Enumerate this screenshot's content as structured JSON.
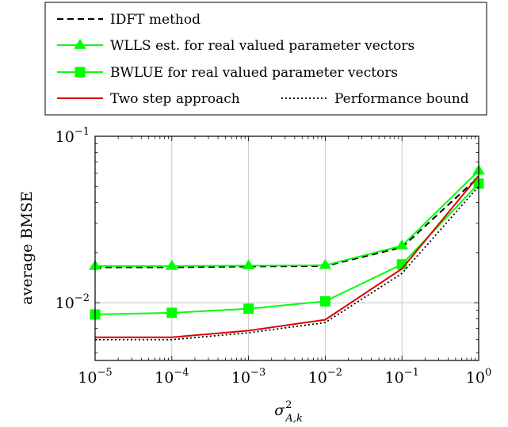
{
  "chart_data": {
    "type": "line",
    "xlabel": "σ",
    "xlabel_sup": "2",
    "xlabel_sub": "A,k",
    "ylabel": "average BMSE",
    "xscale": "log",
    "yscale": "log",
    "xlim": [
      1e-05,
      1
    ],
    "ylim": [
      0.0045,
      0.1
    ],
    "grid": true,
    "legend_position": "top",
    "x_ticks": [
      {
        "base": "10",
        "exp": "−5",
        "value": 1e-05
      },
      {
        "base": "10",
        "exp": "−4",
        "value": 0.0001
      },
      {
        "base": "10",
        "exp": "−3",
        "value": 0.001
      },
      {
        "base": "10",
        "exp": "−2",
        "value": 0.01
      },
      {
        "base": "10",
        "exp": "−1",
        "value": 0.1
      },
      {
        "base": "10",
        "exp": "0",
        "value": 1
      }
    ],
    "y_ticks": [
      {
        "base": "10",
        "exp": "−2",
        "value": 0.01
      },
      {
        "base": "10",
        "exp": "−1",
        "value": 0.1
      }
    ],
    "x": [
      1e-05,
      0.0001,
      0.001,
      0.01,
      0.1,
      1
    ],
    "series": [
      {
        "name": "IDFT method",
        "color": "#000000",
        "dash": "dashed",
        "marker": "none",
        "values": [
          0.0163,
          0.0163,
          0.0165,
          0.0166,
          0.0215,
          0.057
        ]
      },
      {
        "name": "WLLS est. for real valued parameter vectors",
        "color": "#00ff00",
        "dash": "solid",
        "marker": "triangle",
        "values": [
          0.0166,
          0.0166,
          0.0167,
          0.0168,
          0.022,
          0.062
        ]
      },
      {
        "name": "BWLUE for real valued parameter vectors",
        "color": "#00ff00",
        "dash": "solid",
        "marker": "square",
        "values": [
          0.0085,
          0.0087,
          0.0092,
          0.0102,
          0.017,
          0.052
        ]
      },
      {
        "name": "Two step approach",
        "color": "#dd0000",
        "dash": "solid",
        "marker": "none",
        "values": [
          0.0062,
          0.0062,
          0.0068,
          0.0079,
          0.016,
          0.058
        ]
      },
      {
        "name": "Performance bound",
        "color": "#000000",
        "dash": "dotted",
        "marker": "none",
        "values": [
          0.006,
          0.006,
          0.0066,
          0.0076,
          0.015,
          0.05
        ]
      }
    ]
  }
}
